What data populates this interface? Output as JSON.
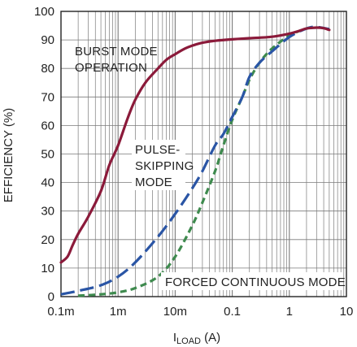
{
  "chart_data": {
    "type": "line",
    "xlabel_main": "I",
    "xlabel_sub": "LOAD",
    "xlabel_unit": " (A)",
    "ylabel": "EFFICIENCY (%)",
    "x_scale": "log",
    "xlim": [
      0.0001,
      10
    ],
    "ylim": [
      0,
      100
    ],
    "grid": true,
    "x_ticks": [
      {
        "value": 0.0001,
        "label": "0.1m"
      },
      {
        "value": 0.001,
        "label": "1m"
      },
      {
        "value": 0.01,
        "label": "10m"
      },
      {
        "value": 0.1,
        "label": "0.1"
      },
      {
        "value": 1,
        "label": "1"
      },
      {
        "value": 10,
        "label": "10"
      }
    ],
    "y_ticks": [
      {
        "value": 0,
        "label": "0"
      },
      {
        "value": 10,
        "label": "10"
      },
      {
        "value": 20,
        "label": "20"
      },
      {
        "value": 30,
        "label": "30"
      },
      {
        "value": 40,
        "label": "40"
      },
      {
        "value": 50,
        "label": "50"
      },
      {
        "value": 60,
        "label": "60"
      },
      {
        "value": 70,
        "label": "70"
      },
      {
        "value": 80,
        "label": "80"
      },
      {
        "value": 90,
        "label": "90"
      },
      {
        "value": 100,
        "label": "100"
      }
    ],
    "series": [
      {
        "key": "burst",
        "color": "#8b1a3a",
        "dash": "solid",
        "points": [
          [
            0.0001,
            12
          ],
          [
            0.00013,
            14
          ],
          [
            0.00016,
            18
          ],
          [
            0.0002,
            22
          ],
          [
            0.0003,
            28
          ],
          [
            0.0005,
            37
          ],
          [
            0.0007,
            46
          ],
          [
            0.001,
            53
          ],
          [
            0.0015,
            63
          ],
          [
            0.002,
            69
          ],
          [
            0.003,
            75
          ],
          [
            0.005,
            80
          ],
          [
            0.007,
            83
          ],
          [
            0.01,
            85
          ],
          [
            0.015,
            87
          ],
          [
            0.02,
            88
          ],
          [
            0.03,
            89
          ],
          [
            0.05,
            89.7
          ],
          [
            0.1,
            90.2
          ],
          [
            0.2,
            90.6
          ],
          [
            0.5,
            91.1
          ],
          [
            1,
            92.2
          ],
          [
            1.5,
            93.2
          ],
          [
            2,
            94
          ],
          [
            3,
            94.3
          ],
          [
            4,
            94.1
          ],
          [
            5,
            93.5
          ]
        ]
      },
      {
        "key": "pulse",
        "color": "#2a55a5",
        "dash": "long",
        "points": [
          [
            0.0001,
            0.8
          ],
          [
            0.0002,
            2
          ],
          [
            0.0005,
            4
          ],
          [
            0.001,
            7
          ],
          [
            0.002,
            12
          ],
          [
            0.005,
            21
          ],
          [
            0.01,
            29
          ],
          [
            0.02,
            38
          ],
          [
            0.03,
            44
          ],
          [
            0.05,
            53
          ],
          [
            0.07,
            57
          ],
          [
            0.1,
            63
          ],
          [
            0.15,
            70
          ],
          [
            0.2,
            77
          ],
          [
            0.3,
            82
          ],
          [
            0.5,
            86
          ],
          [
            1,
            91
          ],
          [
            2,
            94
          ],
          [
            3,
            94.5
          ],
          [
            5,
            93.8
          ]
        ]
      },
      {
        "key": "forced",
        "color": "#3e8a4e",
        "dash": "short",
        "points": [
          [
            0.0002,
            0.3
          ],
          [
            0.0005,
            0.8
          ],
          [
            0.001,
            1.5
          ],
          [
            0.002,
            3
          ],
          [
            0.005,
            7
          ],
          [
            0.01,
            14
          ],
          [
            0.02,
            25
          ],
          [
            0.03,
            33
          ],
          [
            0.05,
            44
          ],
          [
            0.07,
            53
          ],
          [
            0.1,
            62
          ],
          [
            0.15,
            70
          ],
          [
            0.2,
            76
          ],
          [
            0.3,
            82
          ],
          [
            0.5,
            87
          ],
          [
            1,
            91.5
          ],
          [
            2,
            94
          ],
          [
            3,
            94.6
          ]
        ]
      }
    ],
    "annotations": {
      "burst": [
        "BURST MODE",
        "OPERATION"
      ],
      "pulse": [
        "PULSE-",
        "SKIPPING",
        "MODE"
      ],
      "forced": [
        "FORCED CONTINUOUS MODE"
      ]
    }
  }
}
